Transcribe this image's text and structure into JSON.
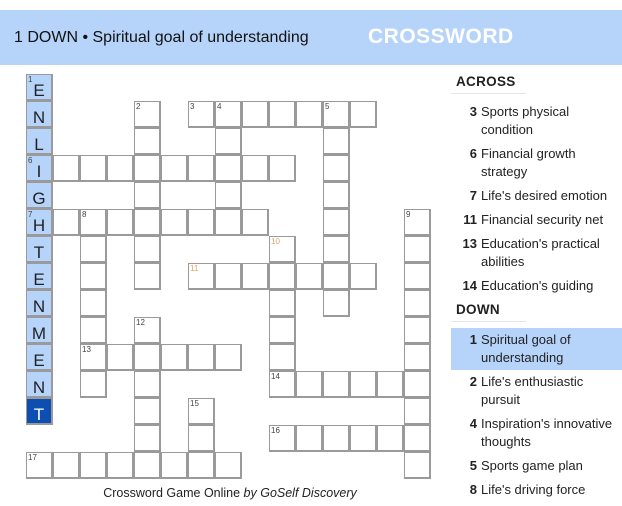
{
  "header": {
    "current_clue": "1 DOWN • Spiritual goal of understanding",
    "title": "CROSSWORD"
  },
  "colors": {
    "header_bg": "#b6d3fa",
    "highlight": "#b6d3fa",
    "current_cell": "#0d4fb0",
    "hint_number": "#e0a060"
  },
  "grid": {
    "rows": [
      "E..............",
      "N...#.#######..",
      "L...#..#...#...",
      "I#########.#...",
      "G...#..#...#...",
      "H########..#..#",
      "T.#.#....#.#..#",
      "E.#.#.#######.#",
      "N.#......#.#..#",
      "M.#.#....#....#",
      "E.######.#....#",
      "N.#.#....######",
      "T...#.#.......#",
      "....#.#..######",
      "########......#"
    ],
    "numbers": [
      {
        "n": "1",
        "r": 0,
        "c": 0
      },
      {
        "n": "2",
        "r": 1,
        "c": 4
      },
      {
        "n": "3",
        "r": 1,
        "c": 6
      },
      {
        "n": "4",
        "r": 1,
        "c": 7
      },
      {
        "n": "5",
        "r": 1,
        "c": 11
      },
      {
        "n": "6",
        "r": 3,
        "c": 0
      },
      {
        "n": "7",
        "r": 5,
        "c": 0
      },
      {
        "n": "8",
        "r": 5,
        "c": 2
      },
      {
        "n": "9",
        "r": 5,
        "c": 14
      },
      {
        "n": "10",
        "r": 6,
        "c": 9,
        "hint": true
      },
      {
        "n": "11",
        "r": 7,
        "c": 6,
        "hint": true
      },
      {
        "n": "12",
        "r": 9,
        "c": 4
      },
      {
        "n": "13",
        "r": 10,
        "c": 2
      },
      {
        "n": "14",
        "r": 11,
        "c": 9
      },
      {
        "n": "15",
        "r": 12,
        "c": 6
      },
      {
        "n": "16",
        "r": 13,
        "c": 9
      },
      {
        "n": "17",
        "r": 14,
        "c": 0
      }
    ],
    "selected_word": {
      "direction": "down",
      "number": "1",
      "cursor_row": 12
    }
  },
  "footer": {
    "text": "Crossword Game Online ",
    "brand": "by GoSelf Discovery"
  },
  "clues": {
    "across_label": "ACROSS",
    "across": [
      {
        "n": "3",
        "t": "Sports physical condition"
      },
      {
        "n": "6",
        "t": "Financial growth strategy"
      },
      {
        "n": "7",
        "t": "Life's desired emotion"
      },
      {
        "n": "11",
        "t": "Financial security net"
      },
      {
        "n": "13",
        "t": "Education's practical abilities"
      },
      {
        "n": "14",
        "t": "Education's guiding"
      }
    ],
    "down_label": "DOWN",
    "down": [
      {
        "n": "1",
        "t": "Spiritual goal of understanding",
        "selected": true
      },
      {
        "n": "2",
        "t": "Life's enthusiastic pursuit"
      },
      {
        "n": "4",
        "t": "Inspiration's innovative thoughts"
      },
      {
        "n": "5",
        "t": "Sports game plan"
      },
      {
        "n": "8",
        "t": "Life's driving force"
      }
    ]
  }
}
